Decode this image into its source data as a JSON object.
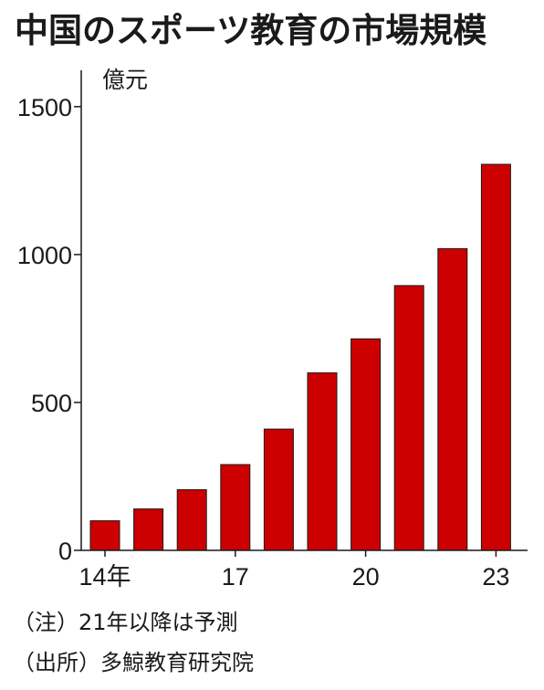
{
  "chart_data": {
    "type": "bar",
    "title": "中国のスポーツ教育の市場規模",
    "unit": "億元",
    "categories": [
      "14",
      "15",
      "16",
      "17",
      "18",
      "19",
      "20",
      "21",
      "22",
      "23"
    ],
    "x_tick_labels": [
      {
        "category": "14",
        "label": "14年"
      },
      {
        "category": "17",
        "label": "17"
      },
      {
        "category": "20",
        "label": "20"
      },
      {
        "category": "23",
        "label": "23"
      }
    ],
    "values": [
      100,
      140,
      205,
      290,
      410,
      600,
      715,
      895,
      1020,
      1305
    ],
    "ylim": [
      0,
      1700
    ],
    "yticks": [
      0,
      500,
      1000,
      1500
    ],
    "grid": false,
    "bar_color": "#cc0000",
    "notes": [
      "（注）21年以降は予測",
      "（出所）多鯨教育研究院"
    ]
  }
}
